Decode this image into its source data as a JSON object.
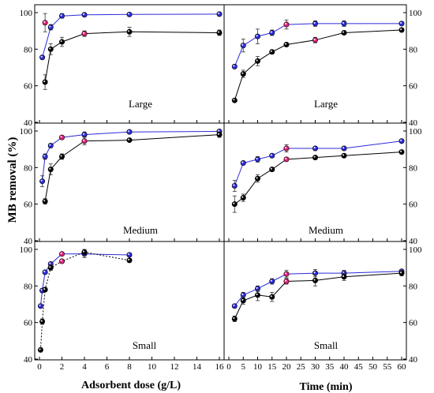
{
  "figure": {
    "ylabel": "MB removal (%)",
    "xlabel_left": "Adsorbent dose (g/L)",
    "xlabel_right": "Time (min)"
  },
  "colors": {
    "blue_series": "#2b2bd9",
    "black_series": "#000000",
    "highlight": "#e0207a"
  },
  "chart_data": [
    {
      "type": "line",
      "panel": "top-left",
      "label": "Large",
      "xlim": [
        0,
        16
      ],
      "xticks": [
        0,
        2,
        4,
        6,
        8,
        10,
        12,
        14,
        16
      ],
      "ylim": [
        40,
        100
      ],
      "yticks": [
        40,
        60,
        80,
        100
      ],
      "series": [
        {
          "x": [
            0.25,
            1,
            2,
            4,
            8,
            16
          ],
          "y": [
            75.5,
            92,
            98.2,
            98.8,
            99,
            99.2
          ],
          "err": [
            0,
            1.5,
            1.2,
            0.8,
            0.5,
            0.5
          ],
          "highlight": [],
          "style": "blue"
        },
        {
          "x": [
            0.5,
            1,
            2,
            4,
            8,
            16
          ],
          "y": [
            62,
            80,
            84,
            88.5,
            89.5,
            89
          ],
          "err": [
            4,
            3,
            2.5,
            1.5,
            2.5,
            1.5
          ],
          "highlight": [
            3
          ],
          "style": "black"
        },
        {
          "x": [
            0.5
          ],
          "y": [
            94.5
          ],
          "err": [
            5
          ],
          "highlight": [
            0
          ],
          "style": "pink"
        }
      ]
    },
    {
      "type": "line",
      "panel": "top-right",
      "label": "Large",
      "xlim": [
        0,
        60
      ],
      "xticks": [
        0,
        5,
        10,
        15,
        20,
        25,
        30,
        35,
        40,
        45,
        50,
        55,
        60
      ],
      "ylim": [
        40,
        100
      ],
      "yticks": [
        40,
        60,
        80,
        100
      ],
      "series": [
        {
          "x": [
            2,
            5,
            10,
            15,
            20,
            30,
            40,
            60
          ],
          "y": [
            70.5,
            82,
            87,
            89,
            93.5,
            94,
            94,
            94
          ],
          "err": [
            1,
            3.5,
            4,
            1.5,
            2.5,
            1.5,
            1.5,
            1
          ],
          "highlight": [
            4
          ],
          "style": "blue"
        },
        {
          "x": [
            2,
            5,
            10,
            15,
            20,
            30,
            40,
            60
          ],
          "y": [
            52,
            66.5,
            73.5,
            78.5,
            82.5,
            85,
            89,
            90.5
          ],
          "err": [
            0.5,
            2,
            2.5,
            1,
            1,
            1.5,
            1,
            1
          ],
          "highlight": [
            5
          ],
          "style": "black"
        }
      ]
    },
    {
      "type": "line",
      "panel": "middle-left",
      "label": "Medium",
      "xlim": [
        0,
        16
      ],
      "xticks": [
        0,
        2,
        4,
        6,
        8,
        10,
        12,
        14,
        16
      ],
      "ylim": [
        40,
        100
      ],
      "yticks": [
        40,
        60,
        80,
        100
      ],
      "series": [
        {
          "x": [
            0.25,
            0.5,
            1,
            2,
            4,
            8,
            16
          ],
          "y": [
            72.5,
            86,
            92,
            96.5,
            98,
            99.5,
            99.8
          ],
          "err": [
            3,
            1.5,
            1,
            1,
            1.5,
            0.5,
            0.5
          ],
          "highlight": [
            3
          ],
          "style": "blue"
        },
        {
          "x": [
            0.5,
            1,
            2,
            4,
            8,
            16
          ],
          "y": [
            61.5,
            79,
            86,
            94.5,
            95,
            98
          ],
          "err": [
            1.5,
            3,
            1.5,
            2,
            0.5,
            1.5
          ],
          "highlight": [
            3
          ],
          "style": "black"
        }
      ]
    },
    {
      "type": "line",
      "panel": "middle-right",
      "label": "Medium",
      "xlim": [
        0,
        60
      ],
      "xticks": [
        0,
        5,
        10,
        15,
        20,
        25,
        30,
        35,
        40,
        45,
        50,
        55,
        60
      ],
      "ylim": [
        40,
        100
      ],
      "yticks": [
        40,
        60,
        80,
        100
      ],
      "series": [
        {
          "x": [
            2,
            5,
            10,
            15,
            20,
            30,
            40,
            60
          ],
          "y": [
            70,
            82.5,
            84.5,
            86.5,
            90.5,
            90.5,
            90.5,
            94.5
          ],
          "err": [
            3,
            1,
            1.5,
            1,
            2,
            1,
            1,
            1
          ],
          "highlight": [
            4
          ],
          "style": "blue"
        },
        {
          "x": [
            2,
            5,
            10,
            15,
            20,
            30,
            40,
            60
          ],
          "y": [
            60,
            63.5,
            74,
            79,
            84.5,
            85.5,
            86.5,
            88.5
          ],
          "err": [
            4.5,
            2,
            2,
            1,
            1,
            1,
            1,
            1
          ],
          "highlight": [
            4
          ],
          "style": "black"
        }
      ]
    },
    {
      "type": "line",
      "panel": "bottom-left",
      "label": "Small",
      "xlim": [
        0,
        16
      ],
      "xticks": [
        0,
        2,
        4,
        6,
        8,
        10,
        12,
        14,
        16
      ],
      "ylim": [
        40,
        100
      ],
      "yticks": [
        40,
        60,
        80,
        100
      ],
      "series": [
        {
          "x": [
            0.1,
            0.25,
            0.5,
            1,
            2,
            4,
            8
          ],
          "y": [
            69,
            77.5,
            87.5,
            92,
            97.5,
            97.5,
            97
          ],
          "err": [
            1,
            1,
            1,
            1,
            1,
            2,
            1
          ],
          "highlight": [
            4
          ],
          "style": "blue"
        },
        {
          "x": [
            0.1,
            0.25,
            0.5,
            1,
            2,
            4,
            8
          ],
          "y": [
            45,
            60.5,
            78,
            90,
            93.5,
            98.5,
            94
          ],
          "err": [
            1,
            1.5,
            1,
            1.5,
            1,
            1.5,
            1
          ],
          "highlight": [
            4
          ],
          "style": "black-dashed"
        }
      ]
    },
    {
      "type": "line",
      "panel": "bottom-right",
      "label": "Small",
      "xlim": [
        0,
        60
      ],
      "xticks": [
        0,
        5,
        10,
        15,
        20,
        25,
        30,
        35,
        40,
        45,
        50,
        55,
        60
      ],
      "ylim": [
        40,
        100
      ],
      "yticks": [
        40,
        60,
        80,
        100
      ],
      "series": [
        {
          "x": [
            2,
            5,
            10,
            15,
            20,
            30,
            40,
            60
          ],
          "y": [
            69,
            75,
            78.5,
            82.5,
            86.5,
            87,
            87,
            88
          ],
          "err": [
            1,
            1.5,
            1.5,
            1.5,
            2,
            2,
            1.5,
            1
          ],
          "highlight": [
            4
          ],
          "style": "blue"
        },
        {
          "x": [
            2,
            5,
            10,
            15,
            20,
            30,
            40,
            60
          ],
          "y": [
            62,
            72,
            75,
            74,
            82.5,
            83,
            85,
            87
          ],
          "err": [
            1.5,
            2,
            3,
            2.5,
            1.5,
            3,
            2,
            1.5
          ],
          "highlight": [
            4
          ],
          "style": "black"
        }
      ]
    }
  ]
}
